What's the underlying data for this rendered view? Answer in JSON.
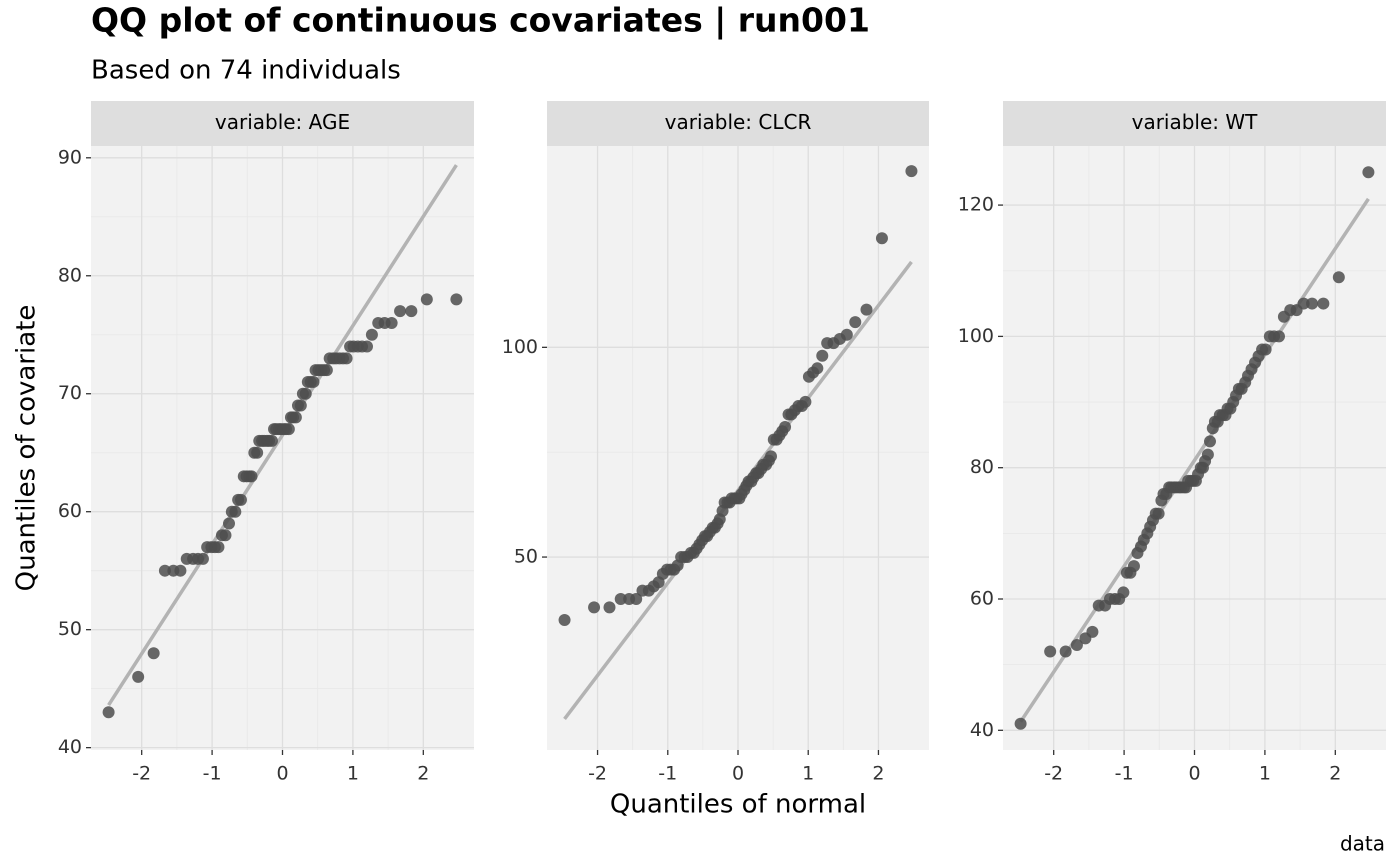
{
  "title": "QQ plot of continuous covariates | run001",
  "subtitle": "Based on 74 individuals",
  "x_label": "Quantiles of normal",
  "y_label": "Quantiles of covariate",
  "caption": "data",
  "chart_data": [
    {
      "type": "scatter",
      "title": "variable: AGE",
      "color": "#4d4d4d",
      "qqline": true,
      "qqline_color": "#b3b3b3",
      "grid": true,
      "xlim": [
        -2.72,
        2.72
      ],
      "xticks": [
        -2,
        -1,
        0,
        1,
        2
      ],
      "ylim": [
        39.8,
        91
      ],
      "yticks": [
        40,
        50,
        60,
        70,
        80,
        90
      ],
      "x": [
        -2.47,
        -2.05,
        -1.83,
        -1.67,
        -1.55,
        -1.45,
        -1.36,
        -1.27,
        -1.2,
        -1.13,
        -1.07,
        -1.01,
        -0.96,
        -0.91,
        -0.86,
        -0.81,
        -0.76,
        -0.72,
        -0.67,
        -0.63,
        -0.59,
        -0.55,
        -0.51,
        -0.47,
        -0.44,
        -0.4,
        -0.36,
        -0.33,
        -0.29,
        -0.26,
        -0.22,
        -0.19,
        -0.15,
        -0.12,
        -0.09,
        -0.05,
        -0.02,
        0.02,
        0.05,
        0.09,
        0.12,
        0.15,
        0.19,
        0.22,
        0.26,
        0.29,
        0.33,
        0.36,
        0.4,
        0.44,
        0.47,
        0.51,
        0.55,
        0.59,
        0.63,
        0.67,
        0.72,
        0.76,
        0.81,
        0.86,
        0.91,
        0.96,
        1.01,
        1.07,
        1.13,
        1.2,
        1.27,
        1.36,
        1.45,
        1.55,
        1.67,
        1.83,
        2.05,
        2.47
      ],
      "values": [
        43,
        46,
        48,
        55,
        55,
        55,
        56,
        56,
        56,
        56,
        57,
        57,
        57,
        57,
        58,
        58,
        59,
        60,
        60,
        61,
        61,
        63,
        63,
        63,
        63,
        65,
        65,
        66,
        66,
        66,
        66,
        66,
        66,
        67,
        67,
        67,
        67,
        67,
        67,
        67,
        68,
        68,
        68,
        69,
        69,
        70,
        70,
        71,
        71,
        71,
        72,
        72,
        72,
        72,
        72,
        73,
        73,
        73,
        73,
        73,
        73,
        74,
        74,
        74,
        74,
        74,
        75,
        76,
        76,
        76,
        77,
        77,
        78,
        78
      ]
    },
    {
      "type": "scatter",
      "title": "variable: CLCR",
      "color": "#4d4d4d",
      "qqline": true,
      "qqline_color": "#b3b3b3",
      "grid": true,
      "xlim": [
        -2.72,
        2.72
      ],
      "xticks": [
        -2,
        -1,
        0,
        1,
        2
      ],
      "ylim": [
        4,
        148
      ],
      "yticks": [
        50,
        100
      ],
      "x": [
        -2.47,
        -2.05,
        -1.83,
        -1.67,
        -1.55,
        -1.45,
        -1.36,
        -1.27,
        -1.2,
        -1.13,
        -1.07,
        -1.01,
        -0.96,
        -0.91,
        -0.86,
        -0.81,
        -0.76,
        -0.72,
        -0.67,
        -0.63,
        -0.59,
        -0.55,
        -0.51,
        -0.47,
        -0.44,
        -0.4,
        -0.36,
        -0.33,
        -0.29,
        -0.26,
        -0.22,
        -0.19,
        -0.15,
        -0.12,
        -0.09,
        -0.05,
        -0.02,
        0.02,
        0.05,
        0.09,
        0.12,
        0.15,
        0.19,
        0.22,
        0.26,
        0.29,
        0.33,
        0.36,
        0.4,
        0.44,
        0.47,
        0.51,
        0.55,
        0.59,
        0.63,
        0.67,
        0.72,
        0.76,
        0.81,
        0.86,
        0.91,
        0.96,
        1.01,
        1.07,
        1.13,
        1.2,
        1.27,
        1.36,
        1.45,
        1.55,
        1.67,
        1.83,
        2.05,
        2.47
      ],
      "values": [
        35,
        38,
        38,
        40,
        40,
        40,
        42,
        42,
        43,
        44,
        46,
        47,
        47,
        47,
        48,
        50,
        50,
        50,
        51,
        51,
        52,
        53,
        54,
        55,
        55,
        56,
        57,
        57,
        58,
        59,
        61,
        63,
        63,
        63,
        64,
        64,
        64,
        64,
        65,
        66,
        67,
        68,
        68,
        69,
        70,
        70,
        71,
        72,
        72,
        73,
        74,
        78,
        78,
        79,
        80,
        81,
        84,
        84,
        85,
        86,
        86,
        87,
        93,
        94,
        95,
        98,
        101,
        101,
        102,
        103,
        106,
        109,
        126,
        142
      ]
    },
    {
      "type": "scatter",
      "title": "variable: WT",
      "color": "#4d4d4d",
      "qqline": true,
      "qqline_color": "#b3b3b3",
      "grid": true,
      "xlim": [
        -2.72,
        2.72
      ],
      "xticks": [
        -2,
        -1,
        0,
        1,
        2
      ],
      "ylim": [
        37,
        129
      ],
      "yticks": [
        40,
        60,
        80,
        100,
        120
      ],
      "x": [
        -2.47,
        -2.05,
        -1.83,
        -1.67,
        -1.55,
        -1.45,
        -1.36,
        -1.27,
        -1.2,
        -1.13,
        -1.07,
        -1.01,
        -0.96,
        -0.91,
        -0.86,
        -0.81,
        -0.76,
        -0.72,
        -0.67,
        -0.63,
        -0.59,
        -0.55,
        -0.51,
        -0.47,
        -0.44,
        -0.4,
        -0.36,
        -0.33,
        -0.29,
        -0.26,
        -0.22,
        -0.19,
        -0.15,
        -0.12,
        -0.09,
        -0.05,
        -0.02,
        0.02,
        0.05,
        0.09,
        0.12,
        0.15,
        0.19,
        0.22,
        0.26,
        0.29,
        0.33,
        0.36,
        0.4,
        0.44,
        0.47,
        0.51,
        0.55,
        0.59,
        0.63,
        0.67,
        0.72,
        0.76,
        0.81,
        0.86,
        0.91,
        0.96,
        1.01,
        1.07,
        1.13,
        1.2,
        1.27,
        1.36,
        1.45,
        1.55,
        1.67,
        1.83,
        2.05,
        2.47
      ],
      "values": [
        41,
        52,
        52,
        53,
        54,
        55,
        59,
        59,
        60,
        60,
        60,
        61,
        64,
        64,
        65,
        67,
        68,
        69,
        70,
        71,
        72,
        73,
        73,
        75,
        76,
        76,
        77,
        77,
        77,
        77,
        77,
        77,
        77,
        77,
        78,
        78,
        78,
        78,
        79,
        80,
        80,
        81,
        82,
        84,
        86,
        87,
        87,
        88,
        88,
        88,
        89,
        89,
        90,
        91,
        92,
        92,
        93,
        94,
        95,
        96,
        97,
        98,
        98,
        100,
        100,
        100,
        103,
        104,
        104,
        105,
        105,
        105,
        109,
        125
      ]
    }
  ]
}
